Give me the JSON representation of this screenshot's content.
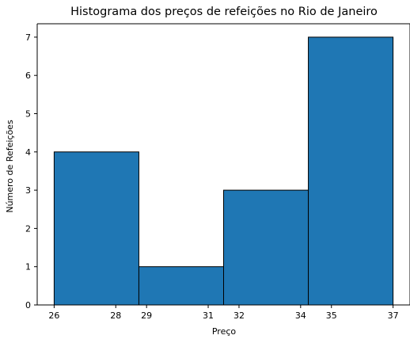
{
  "chart_data": {
    "type": "bar",
    "title": "Histograma dos preços de refeições no Rio de Janeiro",
    "xlabel": "Preço",
    "ylabel": "Número de Refeições",
    "bins": [
      {
        "start": 26,
        "end": 28.75,
        "count": 4
      },
      {
        "start": 28.75,
        "end": 31.5,
        "count": 1
      },
      {
        "start": 31.5,
        "end": 34.25,
        "count": 3
      },
      {
        "start": 34.25,
        "end": 37,
        "count": 7
      }
    ],
    "xticks": [
      26,
      28,
      29,
      31,
      32,
      34,
      35,
      37
    ],
    "yticks": [
      0,
      1,
      2,
      3,
      4,
      5,
      6,
      7
    ],
    "xlim": [
      25.45,
      37.55
    ],
    "ylim": [
      0,
      7.35
    ],
    "bar_color": "#1f77b4",
    "edge_color": "#000000",
    "grid": false,
    "legend": false
  }
}
